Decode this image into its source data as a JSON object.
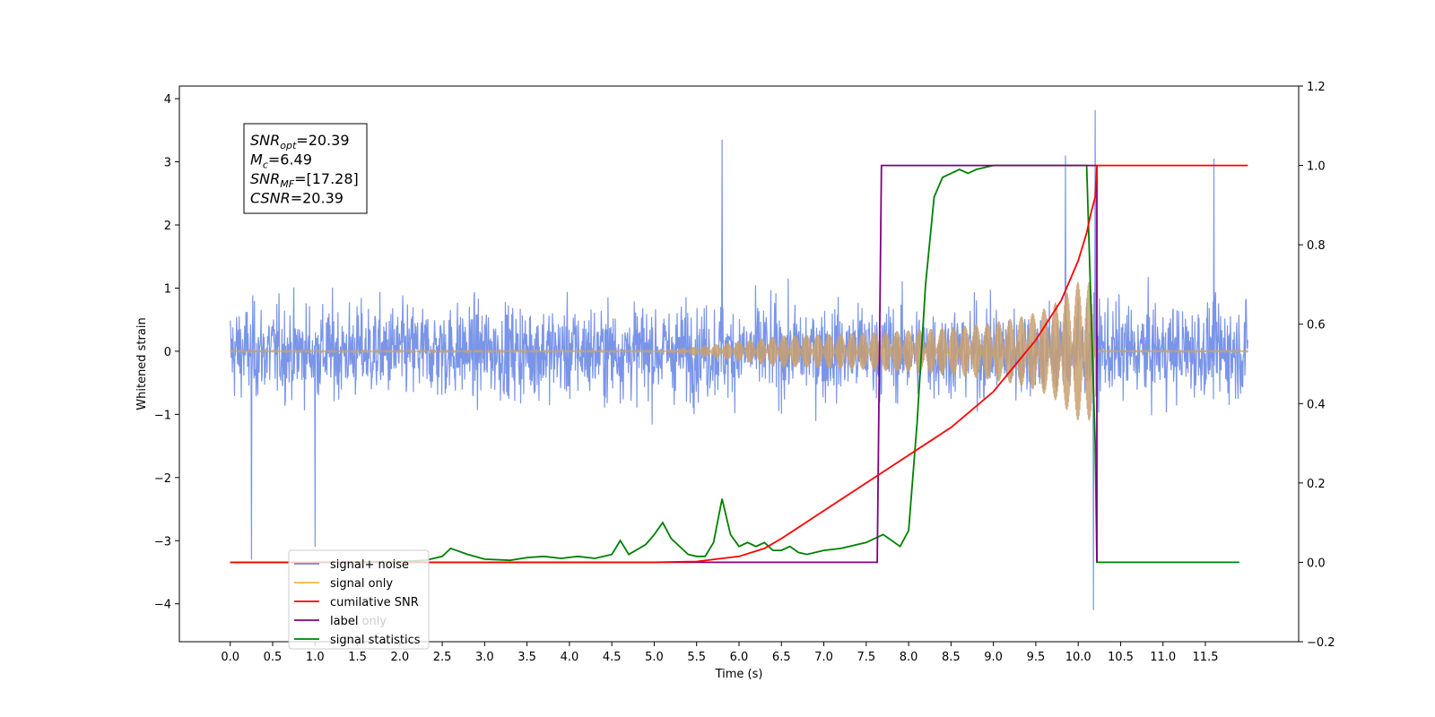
{
  "chart_data": {
    "type": "line",
    "xlabel": "Time (s)",
    "ylabel": "Whitened strain",
    "xlim": [
      -0.6,
      12.6
    ],
    "ylim": [
      -4.6,
      4.2
    ],
    "y2lim": [
      -0.2,
      1.2
    ],
    "x_ticks": [
      "0.0",
      "0.5",
      "1.0",
      "1.5",
      "2.0",
      "2.5",
      "3.0",
      "3.5",
      "4.0",
      "4.5",
      "5.0",
      "5.5",
      "6.0",
      "6.5",
      "7.0",
      "7.5",
      "8.0",
      "8.5",
      "9.0",
      "9.5",
      "10.0",
      "10.5",
      "11.0",
      "11.5"
    ],
    "y_ticks": [
      "4",
      "3",
      "2",
      "1",
      "0",
      "−1",
      "−2",
      "−3",
      "−4"
    ],
    "y2_ticks": [
      "1.2",
      "1.0",
      "0.8",
      "0.6",
      "0.4",
      "0.2",
      "0.0",
      "−0.2"
    ],
    "annotation": [
      {
        "name": "SNR",
        "sub": "opt",
        "value": "=20.39"
      },
      {
        "name": "M",
        "sub": "c",
        "value": "=6.49"
      },
      {
        "name": "SNR",
        "sub": "MF",
        "value": "=[17.28]"
      },
      {
        "name": "CSNR",
        "sub": "",
        "value": "=20.39"
      }
    ],
    "legend_position": "lower-left",
    "legend": [
      {
        "label": "signal+ noise",
        "color": "#6b8ae6"
      },
      {
        "label": "signal only",
        "color": "#ffb347"
      },
      {
        "label": "cumilative SNR",
        "color": "#ff0000"
      },
      {
        "label": "label",
        "color": "#800080"
      },
      {
        "label": "signal statistics",
        "color": "#008000"
      }
    ],
    "legend_hidden_text": "label only",
    "series": [
      {
        "name": "signal+ noise",
        "axis": "left",
        "color": "#6b8ae6",
        "t_range": [
          0.0,
          12.0
        ],
        "amplitude_envelope": 1.45,
        "spikes": [
          [
            0.25,
            -3.3
          ],
          [
            1.0,
            -3.1
          ],
          [
            5.8,
            3.35
          ],
          [
            9.85,
            3.1
          ],
          [
            10.2,
            3.82
          ],
          [
            10.18,
            -4.1
          ],
          [
            11.6,
            3.05
          ]
        ]
      },
      {
        "name": "signal only",
        "axis": "left",
        "color": "#c9a070",
        "t_range": [
          0.0,
          12.0
        ],
        "onset": 5.0,
        "merger": 10.2,
        "peak_amplitude": 1.1
      },
      {
        "name": "cumilative SNR",
        "axis": "right",
        "color": "#ff0000",
        "x": [
          0.0,
          5.0,
          5.5,
          6.0,
          6.3,
          6.5,
          7.0,
          7.5,
          8.0,
          8.5,
          9.0,
          9.5,
          9.8,
          10.0,
          10.1,
          10.15,
          10.2,
          10.22,
          12.0
        ],
        "y": [
          0.0,
          0.0,
          0.002,
          0.015,
          0.035,
          0.06,
          0.13,
          0.2,
          0.27,
          0.34,
          0.43,
          0.56,
          0.66,
          0.76,
          0.83,
          0.88,
          0.92,
          1.0,
          1.0
        ]
      },
      {
        "name": "label",
        "axis": "right",
        "color": "#800080",
        "x": [
          0.0,
          7.63,
          7.68,
          10.22,
          10.22
        ],
        "y": [
          0.0,
          0.0,
          1.0,
          1.0,
          0.0
        ]
      },
      {
        "name": "signal statistics",
        "axis": "right",
        "color": "#008000",
        "x": [
          0.0,
          1.0,
          2.0,
          2.3,
          2.5,
          2.6,
          2.8,
          3.0,
          3.3,
          3.5,
          3.7,
          3.9,
          4.1,
          4.3,
          4.5,
          4.6,
          4.7,
          4.9,
          5.0,
          5.1,
          5.2,
          5.4,
          5.5,
          5.6,
          5.7,
          5.8,
          5.9,
          6.0,
          6.1,
          6.2,
          6.3,
          6.4,
          6.5,
          6.6,
          6.7,
          6.8,
          7.0,
          7.2,
          7.5,
          7.7,
          7.9,
          8.0,
          8.1,
          8.2,
          8.3,
          8.4,
          8.5,
          8.6,
          8.7,
          8.8,
          9.0,
          9.5,
          10.1,
          10.2,
          10.22,
          11.9
        ],
        "y": [
          0.0,
          0.0,
          0.002,
          0.005,
          0.015,
          0.035,
          0.02,
          0.008,
          0.005,
          0.012,
          0.015,
          0.01,
          0.015,
          0.01,
          0.02,
          0.055,
          0.02,
          0.045,
          0.07,
          0.1,
          0.06,
          0.02,
          0.015,
          0.015,
          0.05,
          0.16,
          0.07,
          0.04,
          0.05,
          0.04,
          0.05,
          0.03,
          0.03,
          0.04,
          0.025,
          0.02,
          0.03,
          0.035,
          0.05,
          0.07,
          0.04,
          0.08,
          0.35,
          0.7,
          0.92,
          0.97,
          0.98,
          0.99,
          0.98,
          0.99,
          1.0,
          1.0,
          1.0,
          0.3,
          0.0,
          0.0
        ]
      }
    ]
  }
}
